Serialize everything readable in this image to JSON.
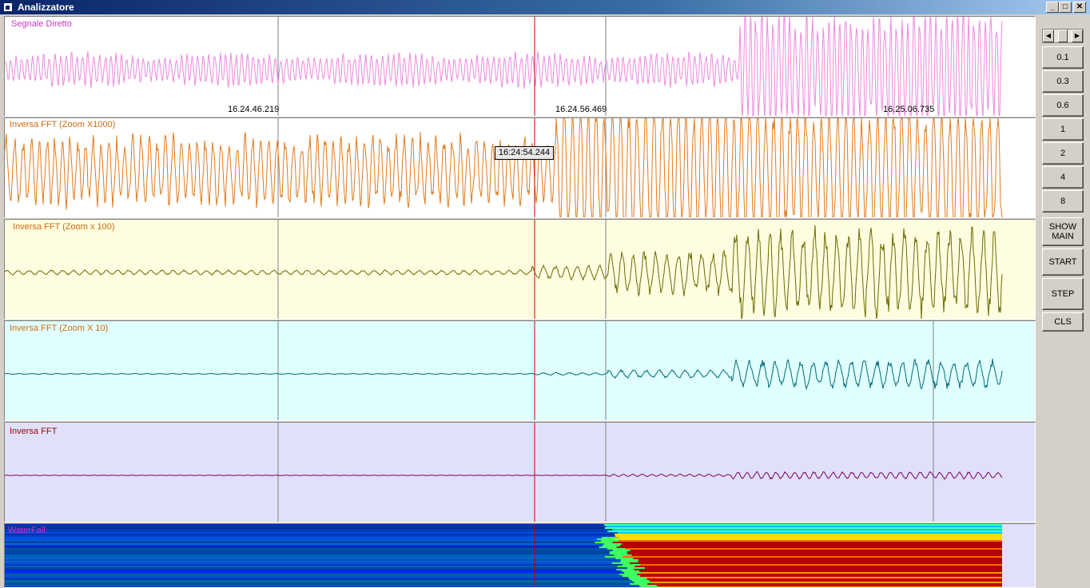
{
  "window": {
    "title": "Analizzatore",
    "controls": [
      "_",
      "□",
      "✕"
    ]
  },
  "panels": [
    {
      "label": "Segnale Diretto",
      "label_color": "#cc33cc",
      "bg": "#ffffff",
      "wave_color": "#ee88dd"
    },
    {
      "label": "Inversa FFT (Zoom X1000)",
      "label_color": "#d46a10",
      "bg": "#ffffff",
      "wave_color": "#e07a1c"
    },
    {
      "label": "Inversa FFT (Zoom x 100)",
      "label_color": "#d46a10",
      "bg": "#fffde0",
      "wave_color": "#6b6b00"
    },
    {
      "label": "Inversa FFT (Zoom X 10)",
      "label_color": "#d46a10",
      "bg": "#e0ffff",
      "wave_color": "#006a7a"
    },
    {
      "label": "Inversa FFT",
      "label_color": "#990000",
      "bg": "#e0e0fa",
      "wave_color": "#7a006a"
    },
    {
      "label": "WaterFall",
      "label_color": "#cc33cc",
      "bg": "#e0e0fa"
    }
  ],
  "timestamps": [
    "16.24.46.219",
    "16.24.56.469",
    "16.25.06.735"
  ],
  "cursor_tooltip": "16:24:54.244",
  "sidebar": {
    "buttons": [
      "0.1",
      "0.3",
      "0.6",
      "1",
      "2",
      "4",
      "8",
      "SHOW\nMAIN",
      "START",
      "STEP",
      "CLS"
    ]
  }
}
